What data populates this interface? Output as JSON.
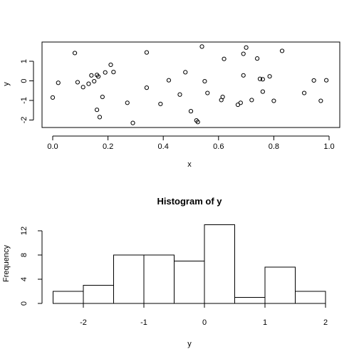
{
  "chart_data": [
    {
      "type": "scatter",
      "title": "",
      "xlabel": "x",
      "ylabel": "y",
      "xlim": [
        0.0,
        1.0
      ],
      "ylim": [
        -2.2,
        1.8
      ],
      "xticks": [
        0.0,
        0.2,
        0.4,
        0.6,
        0.8,
        1.0
      ],
      "xtick_labels": [
        "0.0",
        "0.2",
        "0.4",
        "0.6",
        "0.8",
        "1.0"
      ],
      "yticks": [
        -2,
        -1,
        0,
        1
      ],
      "ytick_labels": [
        "-2",
        "-1",
        "0",
        "1"
      ],
      "grid": false,
      "points": [
        {
          "x": 0.0,
          "y": -0.85
        },
        {
          "x": 0.02,
          "y": -0.1
        },
        {
          "x": 0.08,
          "y": 1.42
        },
        {
          "x": 0.09,
          "y": -0.07
        },
        {
          "x": 0.11,
          "y": -0.32
        },
        {
          "x": 0.13,
          "y": -0.15
        },
        {
          "x": 0.14,
          "y": 0.28
        },
        {
          "x": 0.15,
          "y": -0.02
        },
        {
          "x": 0.16,
          "y": 0.3
        },
        {
          "x": 0.165,
          "y": 0.22
        },
        {
          "x": 0.16,
          "y": -1.48
        },
        {
          "x": 0.17,
          "y": -1.85
        },
        {
          "x": 0.18,
          "y": -0.82
        },
        {
          "x": 0.19,
          "y": 0.43
        },
        {
          "x": 0.21,
          "y": 0.82
        },
        {
          "x": 0.22,
          "y": 0.45
        },
        {
          "x": 0.27,
          "y": -1.12
        },
        {
          "x": 0.29,
          "y": -2.15
        },
        {
          "x": 0.34,
          "y": 1.45
        },
        {
          "x": 0.34,
          "y": -0.35
        },
        {
          "x": 0.39,
          "y": -1.18
        },
        {
          "x": 0.42,
          "y": 0.03
        },
        {
          "x": 0.46,
          "y": -0.7
        },
        {
          "x": 0.48,
          "y": 0.44
        },
        {
          "x": 0.5,
          "y": -1.55
        },
        {
          "x": 0.52,
          "y": -2.02
        },
        {
          "x": 0.525,
          "y": -2.1
        },
        {
          "x": 0.54,
          "y": 1.75
        },
        {
          "x": 0.55,
          "y": -0.02
        },
        {
          "x": 0.56,
          "y": -0.62
        },
        {
          "x": 0.61,
          "y": -0.98
        },
        {
          "x": 0.615,
          "y": -0.82
        },
        {
          "x": 0.62,
          "y": 1.12
        },
        {
          "x": 0.67,
          "y": -1.22
        },
        {
          "x": 0.68,
          "y": -1.12
        },
        {
          "x": 0.69,
          "y": 0.28
        },
        {
          "x": 0.69,
          "y": 1.38
        },
        {
          "x": 0.7,
          "y": 1.7
        },
        {
          "x": 0.72,
          "y": -0.98
        },
        {
          "x": 0.74,
          "y": 1.14
        },
        {
          "x": 0.75,
          "y": 0.1
        },
        {
          "x": 0.76,
          "y": 0.08
        },
        {
          "x": 0.76,
          "y": -0.55
        },
        {
          "x": 0.785,
          "y": 0.23
        },
        {
          "x": 0.8,
          "y": -1.02
        },
        {
          "x": 0.83,
          "y": 1.53
        },
        {
          "x": 0.91,
          "y": -0.62
        },
        {
          "x": 0.945,
          "y": 0.02
        },
        {
          "x": 0.97,
          "y": -1.02
        },
        {
          "x": 0.99,
          "y": 0.03
        }
      ]
    },
    {
      "type": "bar",
      "title": "Histogram of y",
      "xlabel": "y",
      "ylabel": "Frequency",
      "xlim": [
        -2.5,
        2.0
      ],
      "ylim": [
        0,
        13
      ],
      "xticks": [
        -2,
        -1,
        0,
        1,
        2
      ],
      "xtick_labels": [
        "-2",
        "-1",
        "0",
        "1",
        "2"
      ],
      "yticks": [
        0,
        4,
        8,
        12
      ],
      "ytick_labels": [
        "0",
        "4",
        "8",
        "12"
      ],
      "bins": [
        {
          "from": -2.5,
          "to": -2.0,
          "count": 2
        },
        {
          "from": -2.0,
          "to": -1.5,
          "count": 3
        },
        {
          "from": -1.5,
          "to": -1.0,
          "count": 8
        },
        {
          "from": -1.0,
          "to": -0.5,
          "count": 8
        },
        {
          "from": -0.5,
          "to": 0.0,
          "count": 7
        },
        {
          "from": 0.0,
          "to": 0.5,
          "count": 13
        },
        {
          "from": 0.5,
          "to": 1.0,
          "count": 1
        },
        {
          "from": 1.0,
          "to": 1.5,
          "count": 6
        },
        {
          "from": 1.5,
          "to": 2.0,
          "count": 2
        }
      ]
    }
  ]
}
